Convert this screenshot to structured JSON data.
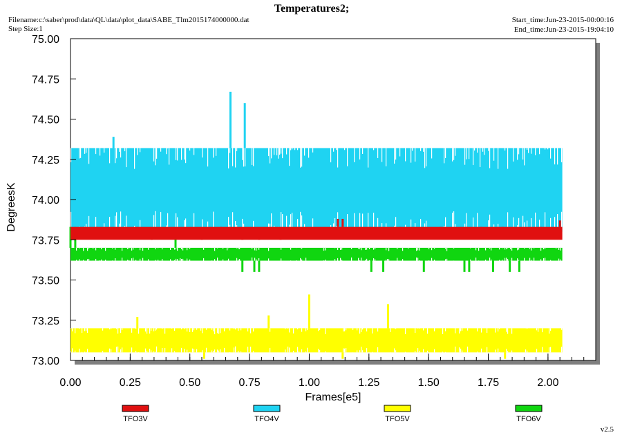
{
  "header": {
    "title": "Temperatures2;",
    "filename": "Filename:c:\\saber\\prod\\data\\QL\\data\\plot_data\\SABE_Tlm2015174000000.dat",
    "step_size": "Step Size:1",
    "start_time": "Start_time:Jun-23-2015-00:00:16",
    "end_time": "End_time:Jun-23-2015-19:04:10",
    "version": "v2.5"
  },
  "colors": {
    "background": "#ffffff",
    "plot_background": "#ffffff",
    "frame_shadow": "#7f7f7f",
    "TFO3V": "#e01010",
    "TFO4V": "#1fd3f2",
    "TFO5V": "#ffff00",
    "TFO6V": "#10d610"
  },
  "chart_data": {
    "type": "line",
    "title": "Temperatures2;",
    "xlabel": "Frames[e5]",
    "ylabel": "DegreesK",
    "xlim": [
      0.0,
      2.2
    ],
    "ylim": [
      73.0,
      75.0
    ],
    "x_ticks": [
      "0.00",
      "0.25",
      "0.50",
      "0.75",
      "1.00",
      "1.25",
      "1.50",
      "1.75",
      "2.00"
    ],
    "y_ticks": [
      "73.00",
      "73.25",
      "73.50",
      "73.75",
      "74.00",
      "74.25",
      "74.50",
      "74.75",
      "75.00"
    ],
    "grid": false,
    "legend_position": "bottom",
    "data_x_range": [
      0.0,
      2.06
    ],
    "series": [
      {
        "name": "TFO3V",
        "color": "#e01010",
        "base_range": [
          73.75,
          73.83
        ],
        "spikes": [
          {
            "x": 0.06,
            "y": 73.83
          },
          {
            "x": 0.11,
            "y": 73.83
          },
          {
            "x": 0.28,
            "y": 73.83
          },
          {
            "x": 0.34,
            "y": 73.8
          },
          {
            "x": 0.55,
            "y": 73.8
          },
          {
            "x": 0.63,
            "y": 73.83
          },
          {
            "x": 0.72,
            "y": 73.81
          },
          {
            "x": 0.79,
            "y": 73.82
          },
          {
            "x": 0.88,
            "y": 73.82
          },
          {
            "x": 0.95,
            "y": 73.83
          },
          {
            "x": 1.12,
            "y": 73.88
          },
          {
            "x": 1.14,
            "y": 73.88
          },
          {
            "x": 1.38,
            "y": 73.83
          },
          {
            "x": 1.55,
            "y": 73.83
          },
          {
            "x": 1.66,
            "y": 73.83
          },
          {
            "x": 1.72,
            "y": 73.83
          },
          {
            "x": 1.79,
            "y": 73.83
          },
          {
            "x": 1.81,
            "y": 73.83
          },
          {
            "x": 1.97,
            "y": 73.83
          },
          {
            "x": 2.05,
            "y": 73.87
          }
        ]
      },
      {
        "name": "TFO4V",
        "color": "#1fd3f2",
        "base_range": [
          73.8,
          74.32
        ],
        "spikes": [
          {
            "x": 0.18,
            "y": 74.39
          },
          {
            "x": 0.67,
            "y": 74.67
          },
          {
            "x": 0.73,
            "y": 74.6
          }
        ]
      },
      {
        "name": "TFO5V",
        "color": "#ffff00",
        "base_range": [
          73.05,
          73.2
        ],
        "spikes": [
          {
            "x": 0.28,
            "y": 73.27
          },
          {
            "x": 0.83,
            "y": 73.28
          },
          {
            "x": 1.0,
            "y": 73.41
          },
          {
            "x": 1.33,
            "y": 73.35
          },
          {
            "x": 0.56,
            "y": 73.01
          },
          {
            "x": 1.14,
            "y": 73.01
          },
          {
            "x": 1.82,
            "y": 73.01
          }
        ]
      },
      {
        "name": "TFO6V",
        "color": "#10d610",
        "base_range": [
          73.62,
          73.7
        ],
        "spikes": [
          {
            "x": 0.0,
            "y": 73.83
          },
          {
            "x": 0.02,
            "y": 73.83
          },
          {
            "x": 0.44,
            "y": 73.76
          },
          {
            "x": 0.72,
            "y": 73.55
          },
          {
            "x": 0.77,
            "y": 73.55
          },
          {
            "x": 0.79,
            "y": 73.55
          },
          {
            "x": 1.26,
            "y": 73.55
          },
          {
            "x": 1.31,
            "y": 73.55
          },
          {
            "x": 1.48,
            "y": 73.55
          },
          {
            "x": 1.65,
            "y": 73.55
          },
          {
            "x": 1.67,
            "y": 73.55
          },
          {
            "x": 1.77,
            "y": 73.55
          },
          {
            "x": 1.84,
            "y": 73.55
          },
          {
            "x": 1.88,
            "y": 73.55
          }
        ]
      }
    ]
  }
}
